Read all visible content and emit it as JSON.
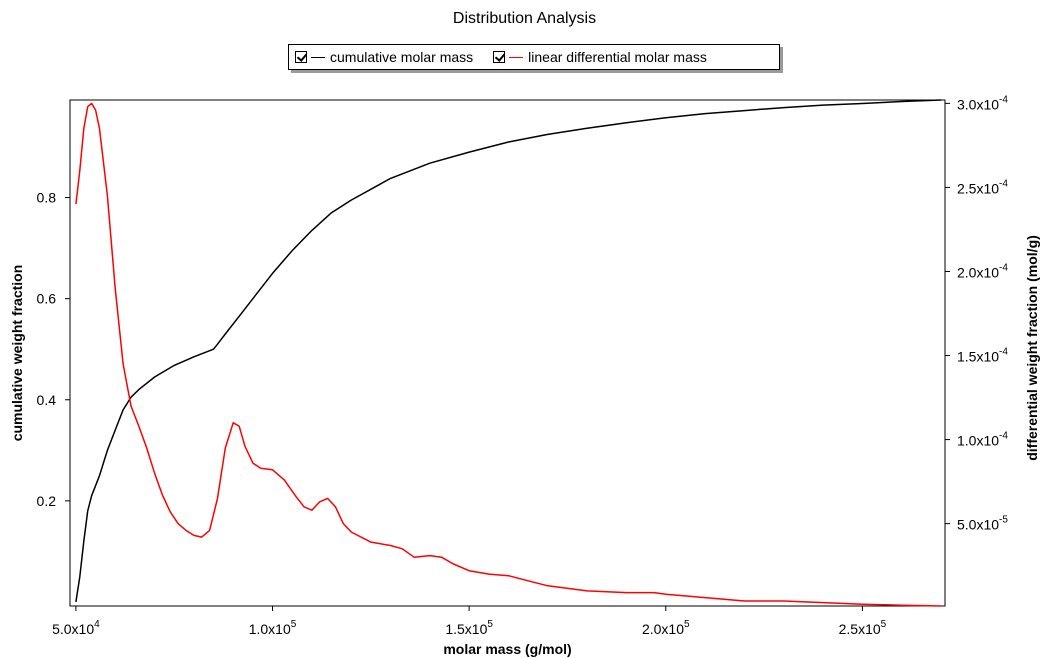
{
  "title": "Distribution Analysis",
  "legend": [
    {
      "label": "cumulative molar mass",
      "color": "#000000",
      "checked": true
    },
    {
      "label": "linear differential molar mass",
      "color": "#ff0000",
      "checked": true
    }
  ],
  "chart_data": {
    "type": "line",
    "title": "Distribution Analysis",
    "xlabel": "molar mass (g/mol)",
    "ylabel_left": "cumulative weight fraction",
    "ylabel_right": "differential weight fraction (mol/g)",
    "xlim": [
      48500,
      271000
    ],
    "ylim_left": [
      -0.008,
      0.993
    ],
    "ylim_right": [
      1e-06,
      0.000302
    ],
    "x_ticks": [
      50000,
      100000,
      150000,
      200000,
      250000
    ],
    "x_tick_labels": [
      "5.0x10^4",
      "1.0x10^5",
      "1.5x10^5",
      "2.0x10^5",
      "2.5x10^5"
    ],
    "y_left_ticks": [
      0.2,
      0.4,
      0.6,
      0.8
    ],
    "y_left_tick_labels": [
      "0.2",
      "0.4",
      "0.6",
      "0.8"
    ],
    "y_right_ticks": [
      5e-05,
      0.0001,
      0.00015,
      0.0002,
      0.00025,
      0.0003
    ],
    "y_right_tick_labels": [
      "5.0x10^-5",
      "1.0x10^-4",
      "1.5x10^-4",
      "2.0x10^-4",
      "2.5x10^-4",
      "3.0x10^-4"
    ],
    "grid": false,
    "legend_position": "top-center",
    "series": [
      {
        "name": "cumulative molar mass",
        "axis": "left",
        "color": "#000000",
        "x": [
          50000,
          51000,
          52000,
          53000,
          54000,
          56000,
          58000,
          60000,
          62000,
          64000,
          66000,
          70000,
          75000,
          80000,
          85000,
          86000,
          87000,
          88000,
          92000,
          96000,
          100000,
          105000,
          110000,
          115000,
          120000,
          130000,
          140000,
          150000,
          160000,
          170000,
          180000,
          190000,
          200000,
          210000,
          220000,
          230000,
          240000,
          250000,
          260000,
          270000
        ],
        "y": [
          0.0,
          0.05,
          0.12,
          0.18,
          0.21,
          0.25,
          0.3,
          0.34,
          0.38,
          0.405,
          0.42,
          0.445,
          0.468,
          0.485,
          0.5,
          0.51,
          0.52,
          0.53,
          0.57,
          0.61,
          0.65,
          0.695,
          0.735,
          0.77,
          0.795,
          0.838,
          0.868,
          0.89,
          0.91,
          0.925,
          0.937,
          0.948,
          0.958,
          0.966,
          0.972,
          0.978,
          0.983,
          0.986,
          0.99,
          0.993
        ]
      },
      {
        "name": "linear differential molar mass",
        "axis": "right",
        "color": "#ff0000",
        "x": [
          50000,
          51000,
          52000,
          53000,
          54000,
          55000,
          56000,
          58000,
          60000,
          62000,
          64000,
          66000,
          68000,
          70000,
          72000,
          74000,
          76000,
          78000,
          80000,
          82000,
          84000,
          86000,
          88000,
          90000,
          91500,
          93000,
          95000,
          97000,
          100000,
          103000,
          106000,
          108000,
          110000,
          112000,
          114000,
          116000,
          118000,
          120000,
          125000,
          130000,
          133000,
          136000,
          140000,
          143000,
          146000,
          150000,
          155000,
          160000,
          165000,
          170000,
          180000,
          190000,
          197000,
          200000,
          210000,
          220000,
          230000,
          240000,
          250000,
          260000,
          270000
        ],
        "y": [
          0.00024,
          0.00026,
          0.000285,
          0.000298,
          0.0003,
          0.000296,
          0.000285,
          0.000245,
          0.00019,
          0.000145,
          0.00012,
          0.000108,
          9.5e-05,
          8e-05,
          6.7e-05,
          5.7e-05,
          5e-05,
          4.6e-05,
          4.3e-05,
          4.2e-05,
          4.6e-05,
          6.5e-05,
          9.5e-05,
          0.00011,
          0.000108,
          9.6e-05,
          8.6e-05,
          8.3e-05,
          8.2e-05,
          7.6e-05,
          6.6e-05,
          6e-05,
          5.8e-05,
          6.3e-05,
          6.5e-05,
          6e-05,
          5e-05,
          4.5e-05,
          3.9e-05,
          3.7e-05,
          3.5e-05,
          3e-05,
          3.1e-05,
          3e-05,
          2.6e-05,
          2.2e-05,
          2e-05,
          1.9e-05,
          1.6e-05,
          1.3e-05,
          1e-05,
          9e-06,
          9e-06,
          8e-06,
          6e-06,
          4e-06,
          4e-06,
          3e-06,
          2e-06,
          1.5e-06,
          1e-06
        ]
      }
    ]
  }
}
